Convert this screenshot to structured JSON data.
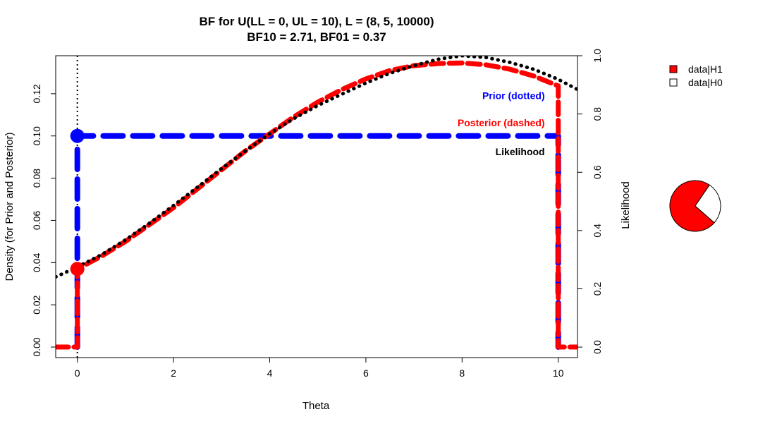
{
  "chart_data": {
    "type": "line",
    "title": "BF for U(LL = 0, UL = 10), L = (8, 5, 10000)",
    "subtitle": "BF10 = 2.71, BF01 = 0.37",
    "xlabel": "Theta",
    "ylabel_left": "Density (for Prior and Posterior)",
    "ylabel_right": "Likelihood",
    "xlim": [
      -0.45,
      10.4
    ],
    "ylim_left": [
      -0.005,
      0.138
    ],
    "ylim_right": [
      -0.036,
      1.0
    ],
    "x_ticks": [
      0,
      2,
      4,
      6,
      8,
      10
    ],
    "x_tick_labels": [
      "0",
      "2",
      "4",
      "6",
      "8",
      "10"
    ],
    "y_left_ticks": [
      0.0,
      0.02,
      0.04,
      0.06,
      0.08,
      0.1,
      0.12
    ],
    "y_left_tick_labels": [
      "0.00",
      "0.02",
      "0.04",
      "0.06",
      "0.08",
      "0.10",
      "0.12"
    ],
    "y_right_ticks": [
      0.0,
      0.2,
      0.4,
      0.6,
      0.8,
      1.0
    ],
    "y_right_tick_labels": [
      "0.0",
      "0.2",
      "0.4",
      "0.6",
      "0.8",
      "1.0"
    ],
    "grid": false,
    "vertical_reference_line": 0,
    "series": [
      {
        "name": "Prior (dotted)",
        "color": "#0000ff",
        "style": "dashed",
        "x": [
          0,
          0,
          10,
          10
        ],
        "y": [
          0.0,
          0.1,
          0.1,
          0.0
        ]
      },
      {
        "name": "Posterior (dashed)",
        "color": "#ff0000",
        "style": "dashed",
        "x": [
          -0.45,
          0,
          0,
          0.5,
          1,
          1.5,
          2,
          2.5,
          3,
          3.5,
          4,
          4.5,
          5,
          5.5,
          6,
          6.5,
          7,
          7.5,
          8,
          8.5,
          9,
          9.5,
          10,
          10,
          10.4
        ],
        "y": [
          0.0,
          0.0,
          0.037,
          0.043,
          0.05,
          0.058,
          0.066,
          0.075,
          0.084,
          0.093,
          0.101,
          0.109,
          0.116,
          0.122,
          0.127,
          0.131,
          0.1333,
          0.1343,
          0.1346,
          0.1337,
          0.1316,
          0.1283,
          0.1237,
          0.0,
          0.0
        ]
      },
      {
        "name": "Likelihood",
        "color": "#000000",
        "style": "dotted",
        "axis": "right",
        "x": [
          -0.45,
          0,
          0.5,
          1,
          1.5,
          2,
          2.5,
          3,
          3.5,
          4,
          4.5,
          5,
          5.5,
          6,
          6.5,
          7,
          7.5,
          8,
          8.5,
          9,
          9.5,
          10,
          10.4
        ],
        "y": [
          0.241,
          0.275,
          0.317,
          0.368,
          0.425,
          0.486,
          0.549,
          0.613,
          0.674,
          0.732,
          0.784,
          0.829,
          0.868,
          0.906,
          0.94,
          0.966,
          0.988,
          1.0,
          0.994,
          0.977,
          0.953,
          0.919,
          0.884
        ]
      }
    ],
    "points": [
      {
        "name": "prior-at-zero",
        "x": 0,
        "y": 0.1,
        "color": "#0000ff"
      },
      {
        "name": "posterior-at-zero",
        "x": 0,
        "y": 0.037,
        "color": "#ff0000"
      }
    ],
    "annotations": [
      {
        "text": "Prior (dotted)",
        "color": "#0000ff",
        "x": 9.72,
        "y": 0.1191
      },
      {
        "text": "Posterior (dashed)",
        "color": "#ff0000",
        "x": 9.72,
        "y": 0.1062
      },
      {
        "text": "Likelihood",
        "color": "#000000",
        "x": 9.72,
        "y": 0.0926
      }
    ],
    "legend": {
      "placement": "top-right outside",
      "entries": [
        {
          "label": "data|H1",
          "color": "#ff0000"
        },
        {
          "label": "data|H0",
          "color": "#ffffff"
        }
      ]
    },
    "pie": {
      "type": "pie",
      "slices": [
        {
          "label": "data|H1",
          "value": 0.73,
          "color": "#ff0000"
        },
        {
          "label": "data|H0",
          "value": 0.27,
          "color": "#ffffff"
        }
      ]
    }
  }
}
